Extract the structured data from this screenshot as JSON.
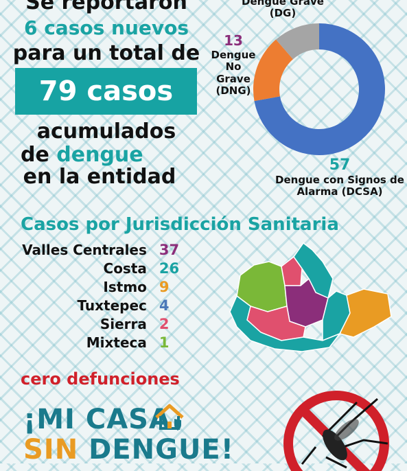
{
  "headline": {
    "reported": "Se reportaron",
    "new_cases": "6 casos nuevos",
    "total_prefix": "para un total de",
    "total_cases": "79 casos",
    "accumulated": "acumulados",
    "of_word": "de",
    "dengue_word": "dengue",
    "entity": "en la entidad"
  },
  "donut": {
    "dg_label": "Dengue Grave (DG)",
    "dng_count": "13",
    "dng_label": "Dengue No Grave (DNG)",
    "dcsa_count": "57",
    "dcsa_label": "Dengue con Signos de Alarma (DCSA)"
  },
  "chart_data": [
    {
      "type": "pie",
      "categories": [
        "Dengue con Signos de Alarma (DCSA)",
        "Dengue No Grave (DNG)",
        "Dengue Grave (DG)"
      ],
      "values": [
        57,
        13,
        9
      ],
      "colors": [
        "#4472c4",
        "#ed7d31",
        "#a5a5a5"
      ],
      "style": "donut"
    },
    {
      "type": "table",
      "title": "Casos por Jurisdicción Sanitaria",
      "rows": [
        {
          "name": "Valles Centrales",
          "value": "37",
          "color": "#8b2e7a"
        },
        {
          "name": "Costa",
          "value": "26",
          "color": "#1aa3a3"
        },
        {
          "name": "Istmo",
          "value": "9",
          "color": "#e99b23"
        },
        {
          "name": "Tuxtepec",
          "value": "4",
          "color": "#4a78b8"
        },
        {
          "name": "Sierra",
          "value": "2",
          "color": "#e0506e"
        },
        {
          "name": "Mixteca",
          "value": "1",
          "color": "#7ab838"
        }
      ]
    }
  ],
  "juris_title": "Casos por Jurisdicción Sanitaria",
  "zero_deaths": "cero defunciones",
  "slogan": {
    "line1": "¡MI CASA",
    "sin": "SIN",
    "dengue": "DENGUE!"
  },
  "icons": {
    "house": "house-shield-icon",
    "mosquito": "no-mosquito-icon"
  }
}
